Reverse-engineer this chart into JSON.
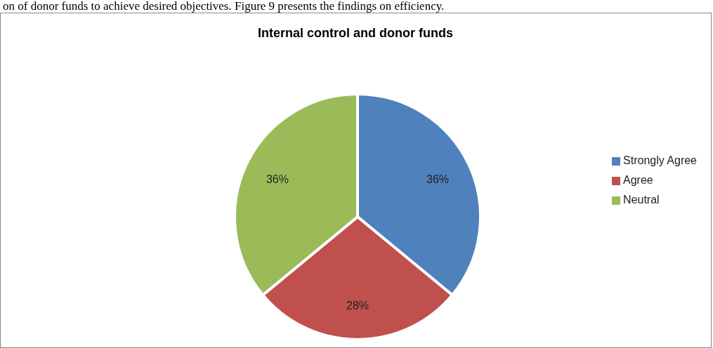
{
  "chart_data": {
    "type": "pie",
    "title": "Internal control and donor funds",
    "categories": [
      "Strongly Agree",
      "Agree",
      "Neutral"
    ],
    "values": [
      36,
      28,
      36
    ],
    "colors": [
      "#4f81bd",
      "#c0504d",
      "#9bbb59"
    ],
    "value_labels": [
      "36%",
      "28%",
      "36%"
    ],
    "legend": "right",
    "annotations": [
      "on of donor funds to achieve desired objectives. Figure 9 presents the findings on efficiency."
    ]
  }
}
